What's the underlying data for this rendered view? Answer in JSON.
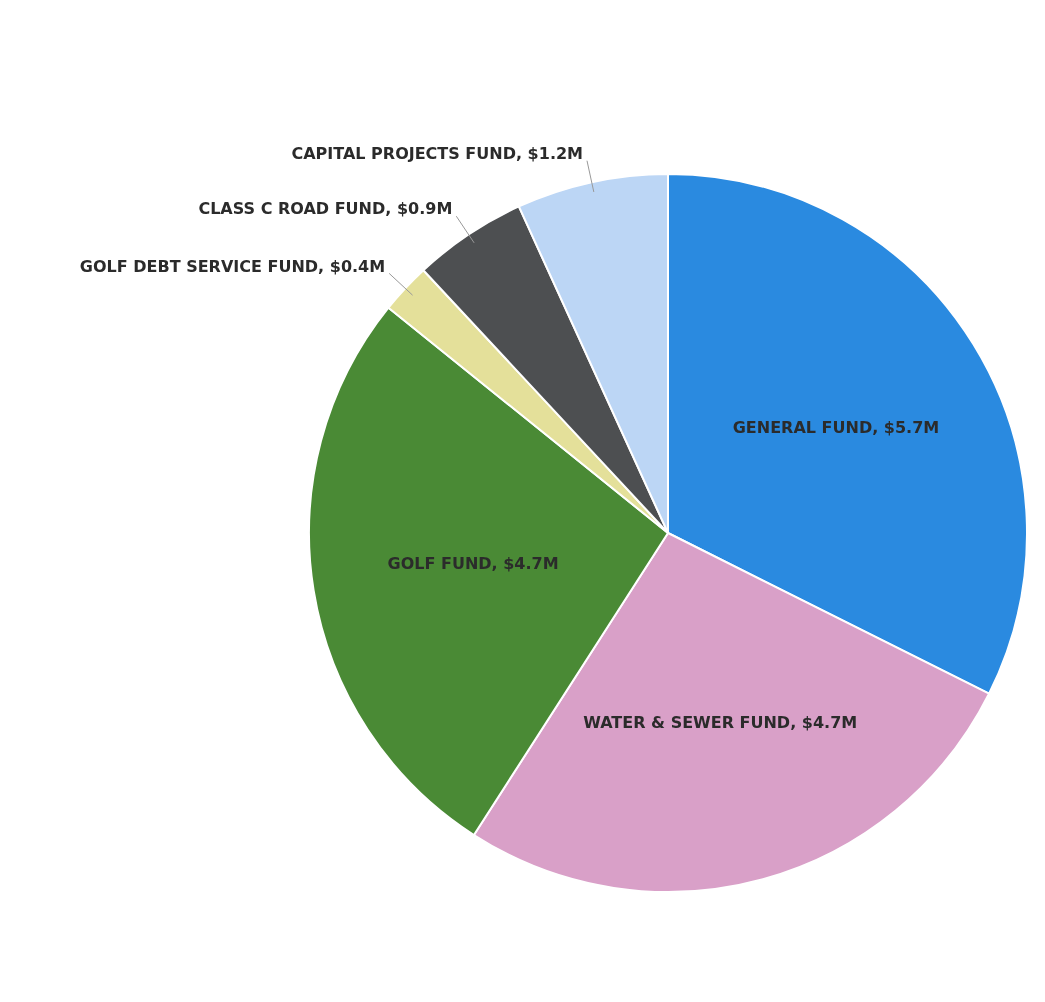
{
  "chart_data": {
    "type": "pie",
    "categories": [
      "GENERAL FUND",
      "WATER & SEWER FUND",
      "GOLF FUND",
      "GOLF DEBT SERVICE FUND",
      "CLASS C ROAD FUND",
      "CAPITAL PROJECTS FUND"
    ],
    "values": [
      5.7,
      4.7,
      4.7,
      0.4,
      0.9,
      1.2
    ],
    "value_labels": [
      "$5.7M",
      "$4.7M",
      "$4.7M",
      "$0.4M",
      "$0.9M",
      "$1.2M"
    ],
    "colors": [
      "#2a8ae0",
      "#d9a0c8",
      "#4a8a35",
      "#e4e09a",
      "#4d4f51",
      "#bcd6f5"
    ],
    "legend": false
  }
}
